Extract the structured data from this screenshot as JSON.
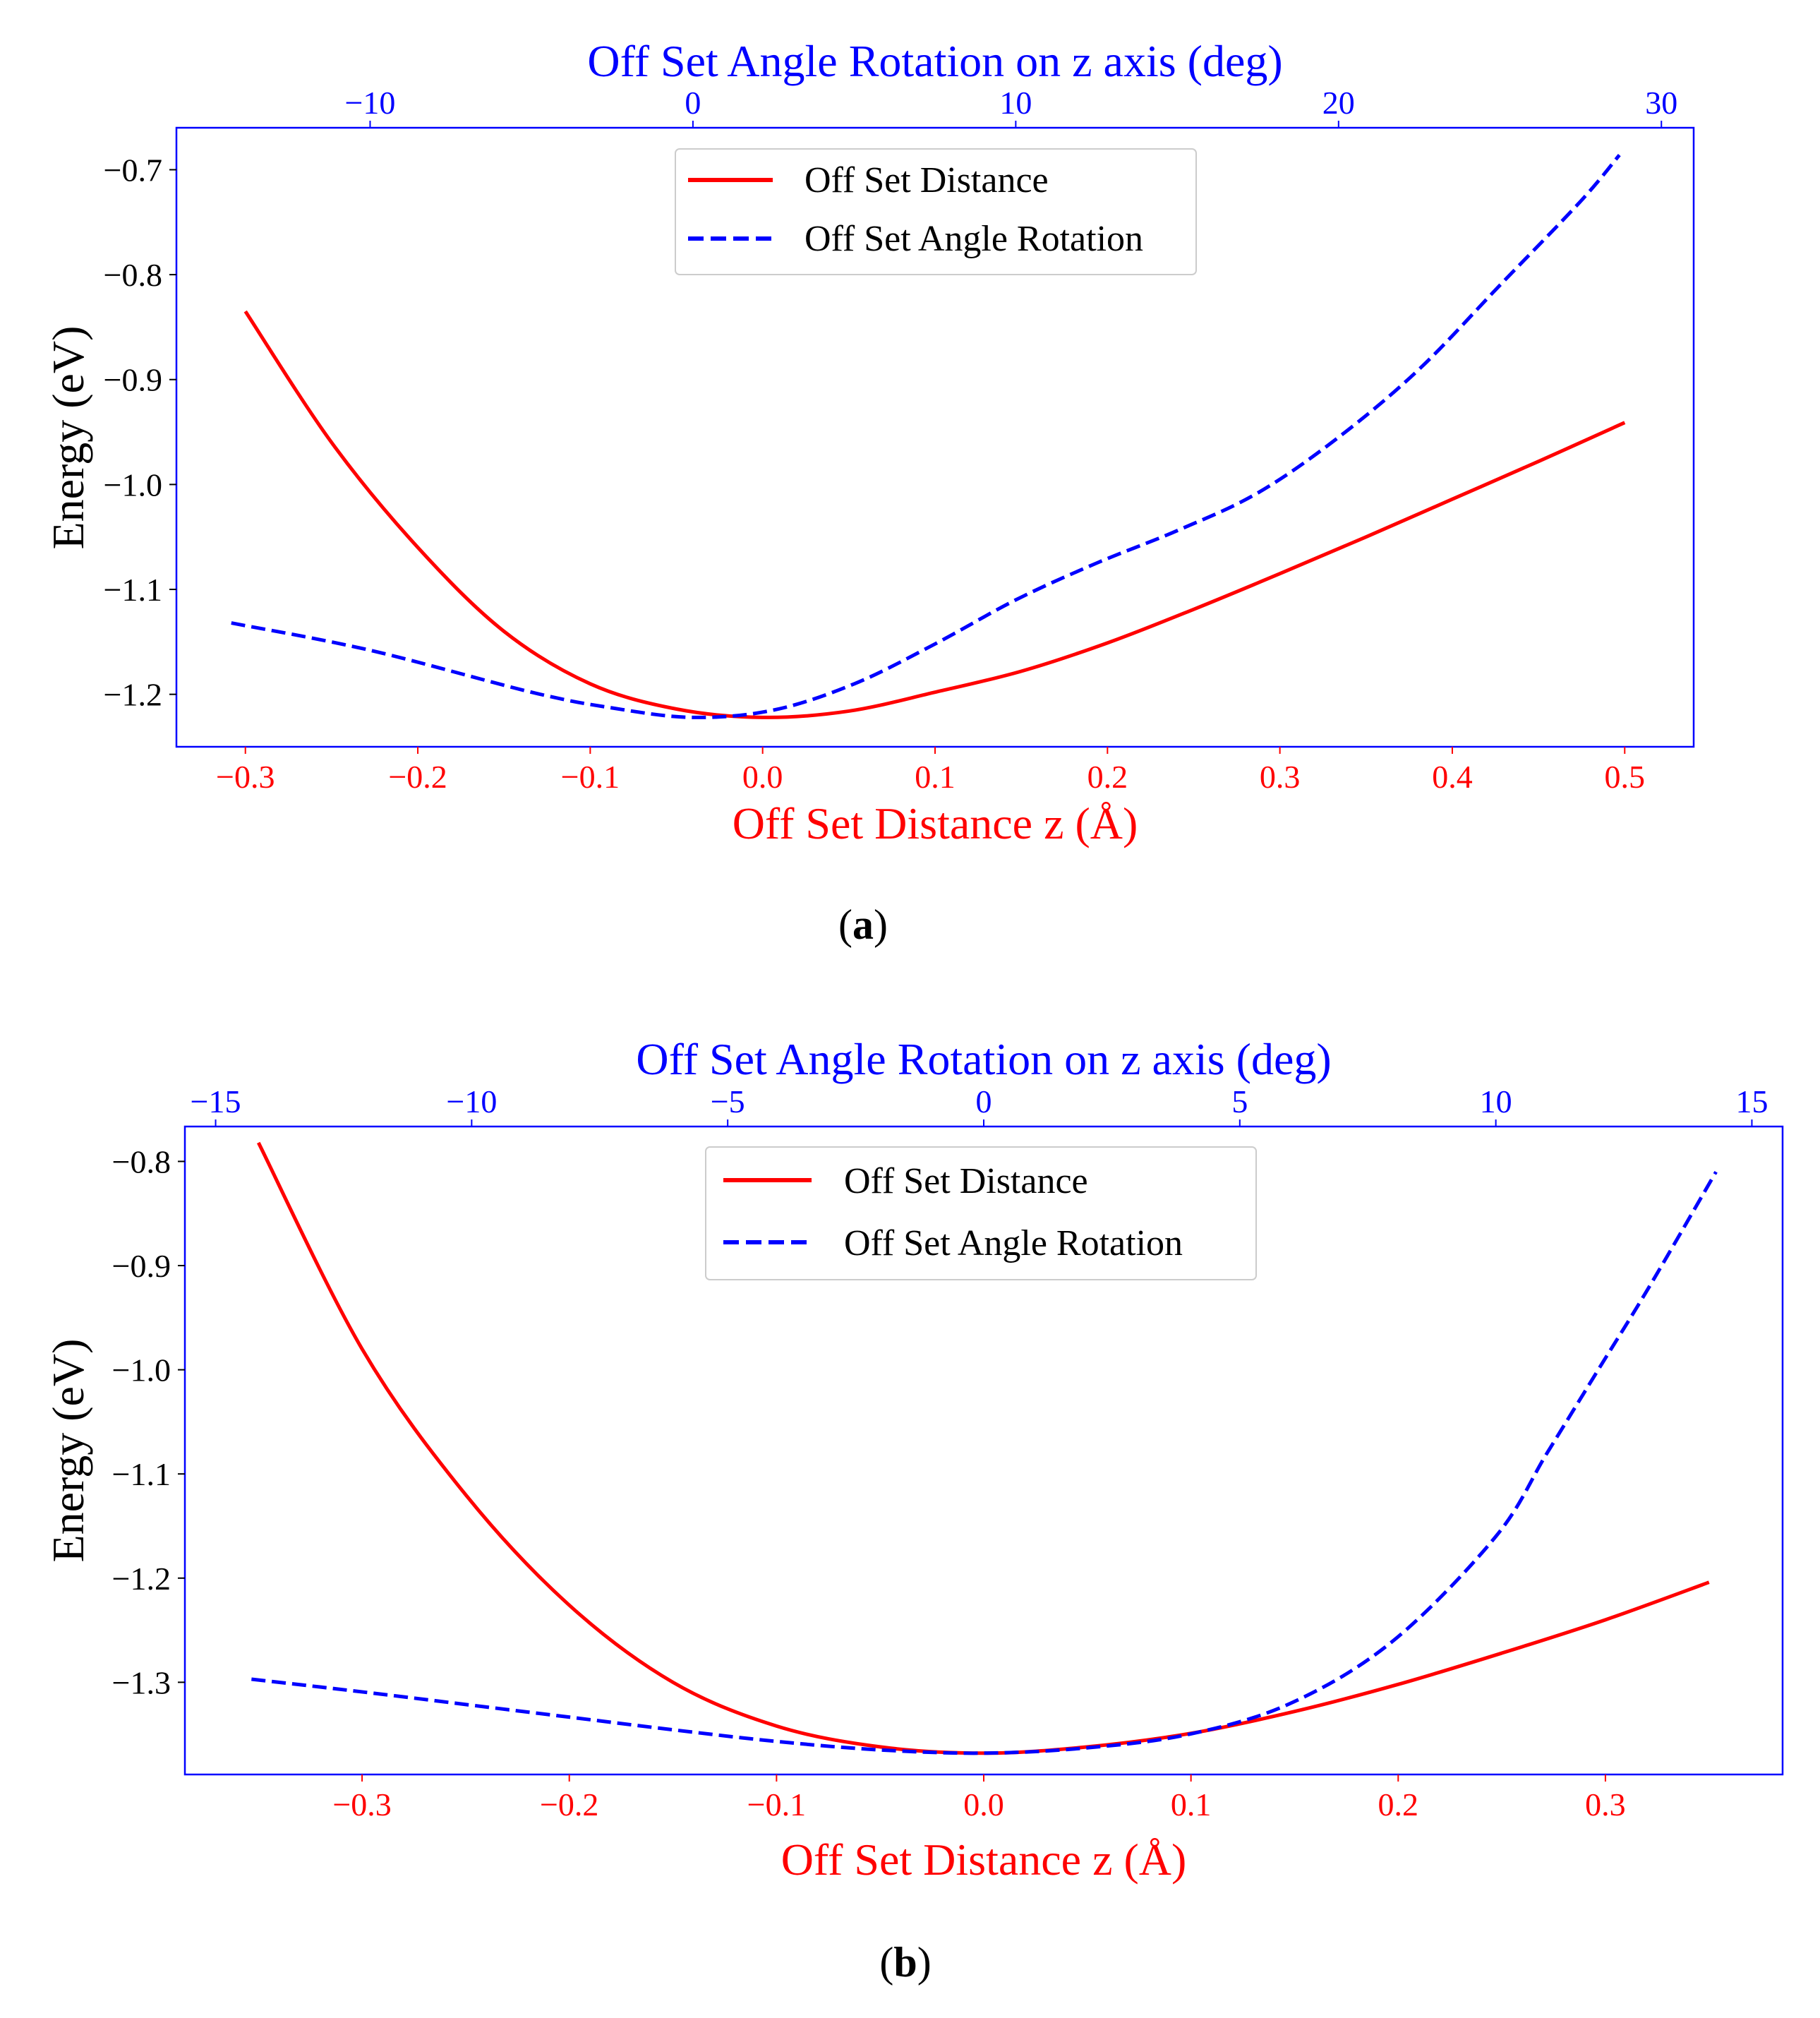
{
  "colors": {
    "distance": "#ff0000",
    "angle": "#0000ff",
    "frame": "#0000ff",
    "text": "#000000"
  },
  "chart_data": [
    {
      "type": "line",
      "panel_label": "(a)",
      "panel_label_letter": "a",
      "xlabel": "Off Set Distance z (Å)",
      "x2label": "Off Set Angle Rotation on z axis (deg)",
      "ylabel": "Energy (eV)",
      "xlim": [
        -0.34,
        0.54
      ],
      "x2lim": [
        -16,
        31
      ],
      "ylim": [
        -1.25,
        -0.66
      ],
      "xticks": [
        -0.3,
        -0.2,
        -0.1,
        0.0,
        0.1,
        0.2,
        0.3,
        0.4,
        0.5
      ],
      "xtick_labels": [
        "−0.3",
        "−0.2",
        "−0.1",
        "0.0",
        "0.1",
        "0.2",
        "0.3",
        "0.4",
        "0.5"
      ],
      "x2ticks": [
        -10,
        0,
        10,
        20,
        30
      ],
      "x2tick_labels": [
        "−10",
        "0",
        "10",
        "20",
        "30"
      ],
      "yticks": [
        -1.2,
        -1.1,
        -1.0,
        -0.9,
        -0.8,
        -0.7
      ],
      "ytick_labels": [
        "−1.2",
        "−1.1",
        "−1.0",
        "−0.9",
        "−0.8",
        "−0.7"
      ],
      "legend": [
        "Off Set Distance",
        "Off Set Angle Rotation"
      ],
      "legend_position": "top-center",
      "series": [
        {
          "name": "Off Set Distance",
          "axis": "bottom",
          "style": "solid",
          "x": [
            -0.3,
            -0.25,
            -0.2,
            -0.15,
            -0.1,
            -0.05,
            0.0,
            0.05,
            0.1,
            0.15,
            0.2,
            0.25,
            0.3,
            0.35,
            0.4,
            0.45,
            0.5
          ],
          "y": [
            -0.835,
            -0.96,
            -1.06,
            -1.14,
            -1.19,
            -1.214,
            -1.222,
            -1.216,
            -1.198,
            -1.178,
            -1.151,
            -1.119,
            -1.085,
            -1.05,
            -1.014,
            -0.978,
            -0.941
          ]
        },
        {
          "name": "Off Set Angle Rotation",
          "axis": "top",
          "style": "dashed",
          "x": [
            -14.3,
            -10,
            -5,
            -2.5,
            0,
            2.5,
            5,
            7.5,
            10,
            12.5,
            15,
            17.5,
            20,
            22.5,
            25,
            27.5,
            28.7
          ],
          "y": [
            -1.132,
            -1.158,
            -1.198,
            -1.213,
            -1.222,
            -1.215,
            -1.19,
            -1.152,
            -1.11,
            -1.075,
            -1.044,
            -1.008,
            -0.955,
            -0.89,
            -0.81,
            -0.73,
            -0.686
          ]
        }
      ]
    },
    {
      "type": "line",
      "panel_label": "(b)",
      "panel_label_letter": "b",
      "xlabel": "Off Set Distance z (Å)",
      "x2label": "Off Set Angle Rotation on z axis (deg)",
      "ylabel": "Energy (eV)",
      "xlim": [
        -0.3855,
        0.3855
      ],
      "x2lim": [
        -15.6,
        15.6
      ],
      "ylim": [
        -1.3885,
        -0.7665
      ],
      "xticks": [
        -0.3,
        -0.2,
        -0.1,
        0.0,
        0.1,
        0.2,
        0.3
      ],
      "xtick_labels": [
        "−0.3",
        "−0.2",
        "−0.1",
        "0.0",
        "0.1",
        "0.2",
        "0.3"
      ],
      "x2ticks": [
        -15,
        -10,
        -5,
        0,
        5,
        10,
        15
      ],
      "x2tick_labels": [
        "−15",
        "−10",
        "−5",
        "0",
        "5",
        "10",
        "15"
      ],
      "yticks": [
        -1.3,
        -1.2,
        -1.1,
        -1.0,
        -0.9,
        -0.8
      ],
      "ytick_labels": [
        "−1.3",
        "−1.2",
        "−1.1",
        "−1.0",
        "−0.9",
        "−0.8"
      ],
      "legend": [
        "Off Set Distance",
        "Off Set Angle Rotation"
      ],
      "legend_position": "top-center",
      "series": [
        {
          "name": "Off Set Distance",
          "axis": "bottom",
          "style": "solid",
          "x": [
            -0.35,
            -0.3,
            -0.25,
            -0.2,
            -0.15,
            -0.1,
            -0.05,
            0.0,
            0.05,
            0.1,
            0.15,
            0.2,
            0.25,
            0.3,
            0.35
          ],
          "y": [
            -0.782,
            -0.98,
            -1.12,
            -1.226,
            -1.3,
            -1.342,
            -1.362,
            -1.368,
            -1.362,
            -1.349,
            -1.328,
            -1.302,
            -1.272,
            -1.24,
            -1.204
          ]
        },
        {
          "name": "Off Set Angle Rotation",
          "axis": "top",
          "style": "dashed",
          "x": [
            -14.3,
            -12,
            -10,
            -8,
            -6,
            -4,
            -2,
            0,
            2,
            4,
            6,
            8,
            10,
            11,
            12,
            13,
            14.3
          ],
          "y": [
            -1.297,
            -1.31,
            -1.322,
            -1.334,
            -1.346,
            -1.357,
            -1.365,
            -1.368,
            -1.363,
            -1.35,
            -1.32,
            -1.26,
            -1.16,
            -1.08,
            -1.0,
            -0.92,
            -0.81
          ]
        }
      ]
    }
  ]
}
